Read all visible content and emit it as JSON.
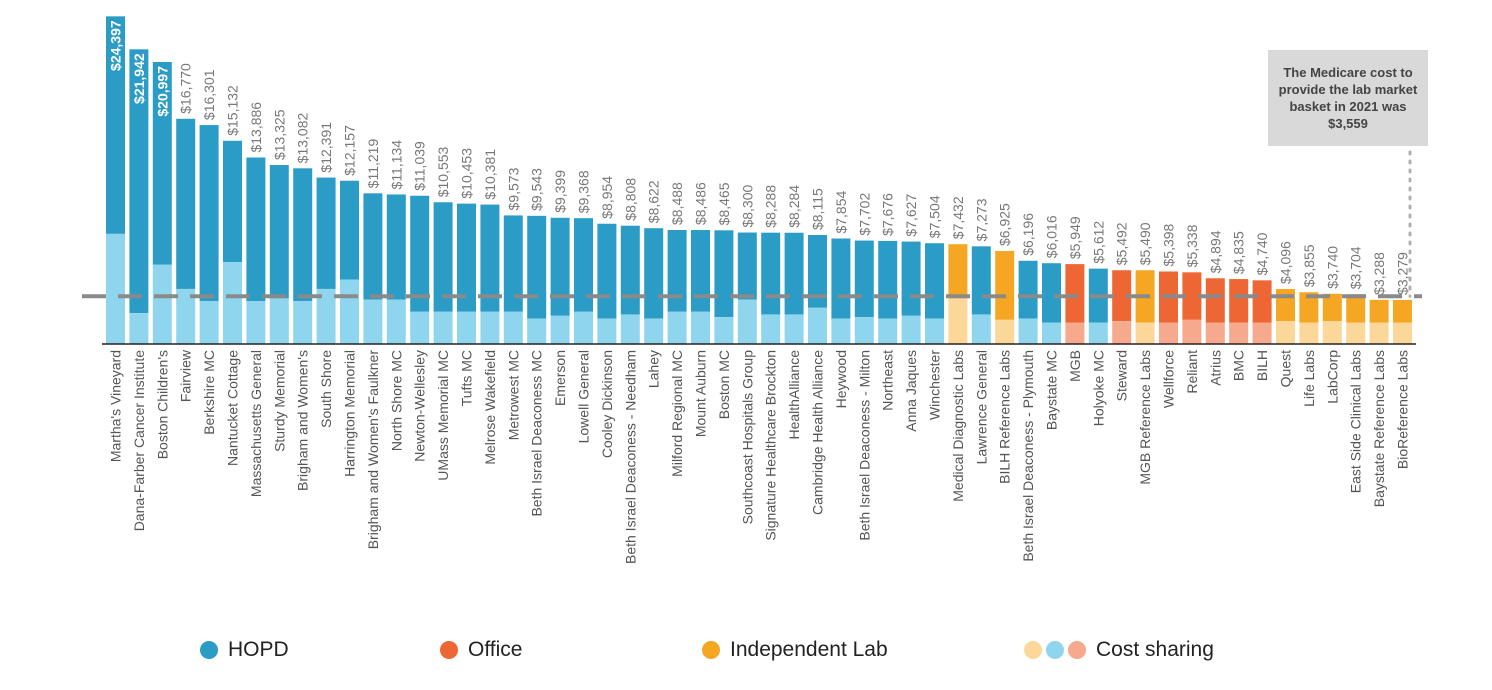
{
  "chart_data": {
    "type": "bar",
    "stacked": true,
    "categories": [
      "Martha's Vineyard",
      "Dana-Farber Cancer Institute",
      "Boston Children's",
      "Fairview",
      "Berkshire MC",
      "Nantucket Cottage",
      "Massachusetts General",
      "Sturdy Memorial",
      "Brigham and Women's",
      "South Shore",
      "Harrington Memorial",
      "Brigham and Women's Faulkner",
      "North Shore MC",
      "Newton-Wellesley",
      "UMass Memorial MC",
      "Tufts MC",
      "Melrose Wakefield",
      "Metrowest MC",
      "Beth Israel Deaconess MC",
      "Emerson",
      "Lowell General",
      "Cooley Dickinson",
      "Beth Israel Deaconess - Needham",
      "Lahey",
      "Milford Regional MC",
      "Mount Auburn",
      "Boston MC",
      "Southcoast Hospitals Group",
      "Signature Healthcare Brockton",
      "HealthAlliance",
      "Cambridge Health Alliance",
      "Heywood",
      "Beth Israel Deaconess - Milton",
      "Northeast",
      "Anna Jaques",
      "Winchester",
      "Medical Diagnostic Labs",
      "Lawrence General",
      "BILH Reference Labs",
      "Beth Israel Deaconess - Plymouth",
      "Baystate MC",
      "MGB",
      "Holyoke MC",
      "Steward",
      "MGB Reference Labs",
      "Wellforce",
      "Reliant",
      "Atrius",
      "BMC",
      "BILH",
      "Quest",
      "Life Labs",
      "LabCorp",
      "East Side Clinical Labs",
      "Baystate Reference Labs",
      "BioReference Labs"
    ],
    "setting": [
      "HOPD",
      "HOPD",
      "HOPD",
      "HOPD",
      "HOPD",
      "HOPD",
      "HOPD",
      "HOPD",
      "HOPD",
      "HOPD",
      "HOPD",
      "HOPD",
      "HOPD",
      "HOPD",
      "HOPD",
      "HOPD",
      "HOPD",
      "HOPD",
      "HOPD",
      "HOPD",
      "HOPD",
      "HOPD",
      "HOPD",
      "HOPD",
      "HOPD",
      "HOPD",
      "HOPD",
      "HOPD",
      "HOPD",
      "HOPD",
      "HOPD",
      "HOPD",
      "HOPD",
      "HOPD",
      "HOPD",
      "HOPD",
      "Independent Lab",
      "HOPD",
      "Independent Lab",
      "HOPD",
      "HOPD",
      "Office",
      "HOPD",
      "Office",
      "Independent Lab",
      "Office",
      "Office",
      "Office",
      "Office",
      "Office",
      "Independent Lab",
      "Independent Lab",
      "Independent Lab",
      "Independent Lab",
      "Independent Lab",
      "Independent Lab"
    ],
    "totals": [
      24397,
      21942,
      20997,
      16770,
      16301,
      15132,
      13886,
      13325,
      13082,
      12391,
      12157,
      11219,
      11134,
      11039,
      10553,
      10453,
      10381,
      9573,
      9543,
      9399,
      9368,
      8954,
      8808,
      8622,
      8488,
      8486,
      8465,
      8300,
      8288,
      8284,
      8115,
      7854,
      7702,
      7676,
      7627,
      7504,
      7432,
      7273,
      6925,
      6196,
      6016,
      5949,
      5612,
      5492,
      5490,
      5398,
      5338,
      4894,
      4835,
      4740,
      4096,
      3855,
      3740,
      3704,
      3288,
      3279
    ],
    "labels": [
      "$24,397",
      "$21,942",
      "$20,997",
      "$16,770",
      "$16,301",
      "$15,132",
      "$13,886",
      "$13,325",
      "$13,082",
      "$12,391",
      "$12,157",
      "$11,219",
      "$11,134",
      "$11,039",
      "$10,553",
      "$10,453",
      "$10,381",
      "$9,573",
      "$9,543",
      "$9,399",
      "$9,368",
      "$8,954",
      "$8,808",
      "$8,622",
      "$8,488",
      "$8,486",
      "$8,465",
      "$8,300",
      "$8,288",
      "$8,284",
      "$8,115",
      "$7,854",
      "$7,702",
      "$7,676",
      "$7,627",
      "$7,504",
      "$7,432",
      "$7,273",
      "$6,925",
      "$6,196",
      "$6,016",
      "$5,949",
      "$5,612",
      "$5,492",
      "$5,490",
      "$5,398",
      "$5,338",
      "$4,894",
      "$4,835",
      "$4,740",
      "$4,096",
      "$3,855",
      "$3,740",
      "$3,704",
      "$3,288",
      "$3,279"
    ],
    "cost_sharing": [
      8200,
      2300,
      5900,
      4100,
      3200,
      6100,
      3200,
      3400,
      3200,
      4100,
      4800,
      3300,
      3300,
      2400,
      2400,
      2400,
      2400,
      2400,
      1900,
      2100,
      2400,
      1900,
      2200,
      1900,
      2400,
      2400,
      2000,
      3300,
      2200,
      2200,
      2700,
      1900,
      2000,
      1900,
      2100,
      1900,
      3400,
      2200,
      1800,
      1900,
      1600,
      1600,
      1600,
      1700,
      1600,
      1600,
      1800,
      1600,
      1600,
      1600,
      1700,
      1600,
      1700,
      1600,
      1600,
      1600
    ],
    "reference_line": 3559,
    "ylim": [
      0,
      25000
    ],
    "label_inside": [
      true,
      true,
      true
    ],
    "colors": {
      "HOPD": "#2b9cc6",
      "Office": "#ee6633",
      "Independent Lab": "#f5a623",
      "HOPD_cost_sharing": "#8fd5ee",
      "Office_cost_sharing": "#f6a98c",
      "Independent Lab_cost_sharing": "#fcd79a",
      "reference_line": "#8a8a8a",
      "value_label": "#777777"
    }
  },
  "callout": {
    "text": "The Medicare cost to provide the lab market basket in 2021 was $3,559"
  },
  "legend": [
    {
      "label": "HOPD",
      "colors": [
        "#2b9cc6"
      ]
    },
    {
      "label": "Office",
      "colors": [
        "#ee6633"
      ]
    },
    {
      "label": "Independent Lab",
      "colors": [
        "#f5a623"
      ]
    },
    {
      "label": "Cost sharing",
      "colors": [
        "#fcd79a",
        "#8fd5ee",
        "#f6a98c"
      ]
    }
  ]
}
